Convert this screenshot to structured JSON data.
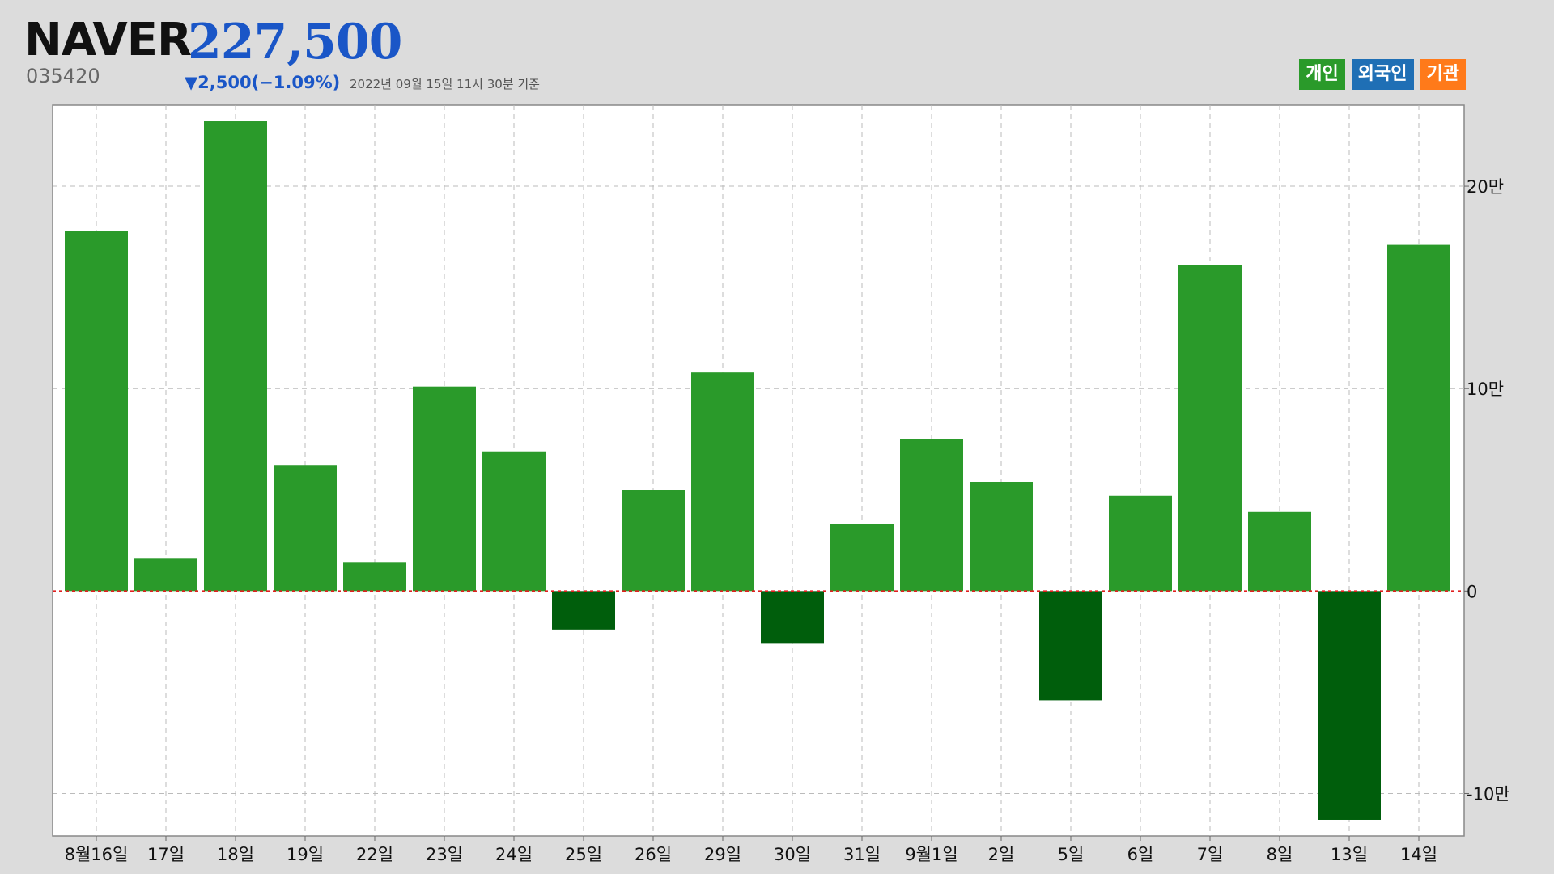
{
  "stock": {
    "name": "NAVER",
    "code": "035420",
    "price": "227,500",
    "change": "▼2,500(−1.09%)",
    "timestamp": "2022년 09월 15일 11시 30분 기준"
  },
  "legend": [
    {
      "label": "개인",
      "color": "#2a9a2a"
    },
    {
      "label": "외국인",
      "color": "#1f6fb5"
    },
    {
      "label": "기관",
      "color": "#ff7a1a"
    }
  ],
  "colors": {
    "positive": "#2a9a2a",
    "negative": "#005e0c",
    "zero_line": "#e02020",
    "grid": "#bbbbbb",
    "plot_bg": "#ffffff"
  },
  "chart_data": {
    "type": "bar",
    "series_name": "개인",
    "categories": [
      "8월16일",
      "17일",
      "18일",
      "19일",
      "22일",
      "23일",
      "24일",
      "25일",
      "26일",
      "29일",
      "30일",
      "31일",
      "9월1일",
      "2일",
      "5일",
      "6일",
      "7일",
      "8일",
      "13일",
      "14일"
    ],
    "values": [
      178000,
      16000,
      232000,
      62000,
      14000,
      101000,
      69000,
      -19000,
      50000,
      108000,
      -26000,
      33000,
      75000,
      54000,
      -54000,
      47000,
      161000,
      39000,
      -113000,
      171000
    ],
    "ylim": [
      -121000,
      240000
    ],
    "yticks": [
      -100000,
      0,
      100000,
      200000
    ],
    "ytick_labels": [
      "-10만",
      "0",
      "10만",
      "20만"
    ],
    "grid": true,
    "legend_position": "top-right"
  }
}
